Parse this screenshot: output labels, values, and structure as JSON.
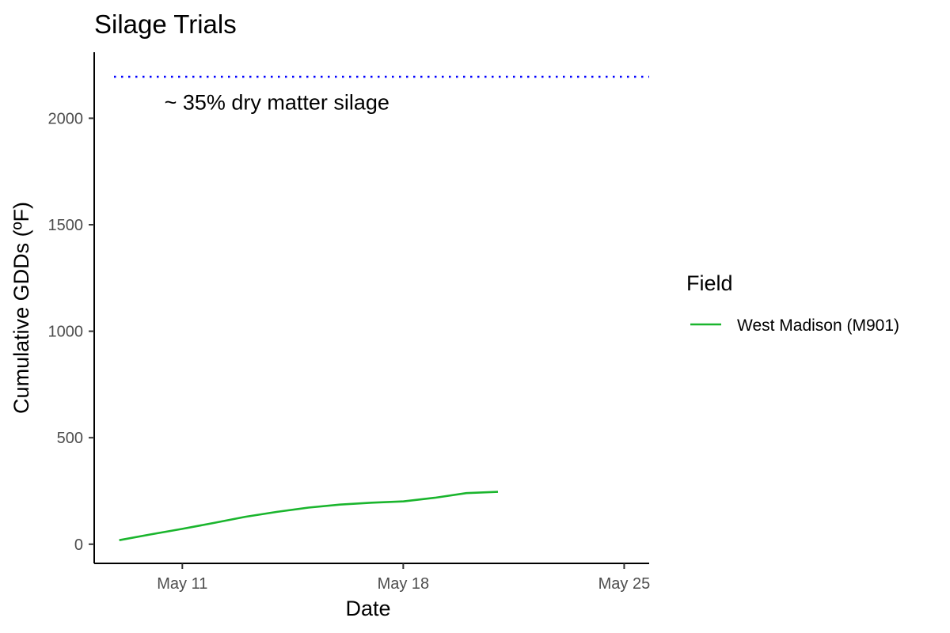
{
  "chart_data": {
    "type": "line",
    "title": "Silage Trials",
    "xlabel": "Date",
    "ylabel": "Cumulative GDDs (ºF)",
    "x_ticks": [
      "May 11",
      "May 18",
      "May 25"
    ],
    "y_ticks": [
      0,
      500,
      1000,
      1500,
      2000
    ],
    "ylim": [
      -90,
      2310
    ],
    "xlim": [
      "2024-05-08 05:00",
      "2024-05-25 19:00"
    ],
    "grid": false,
    "legend": {
      "title": "Field",
      "position": "right"
    },
    "series": [
      {
        "name": "West Madison (M901)",
        "color": "#1ab52d",
        "x": [
          "2024-05-09",
          "2024-05-10",
          "2024-05-11",
          "2024-05-12",
          "2024-05-13",
          "2024-05-14",
          "2024-05-15",
          "2024-05-16",
          "2024-05-17",
          "2024-05-18",
          "2024-05-19",
          "2024-05-20",
          "2024-05-21"
        ],
        "values": [
          19,
          46,
          72,
          100,
          129,
          152,
          172,
          186,
          195,
          201,
          218,
          240,
          246
        ]
      }
    ],
    "reference_line": {
      "value": 2195,
      "color": "#0000ff",
      "style": "dotted"
    },
    "annotation": {
      "text": "~ 35% dry matter silage",
      "x": "2024-05-15",
      "y": 2040
    }
  }
}
